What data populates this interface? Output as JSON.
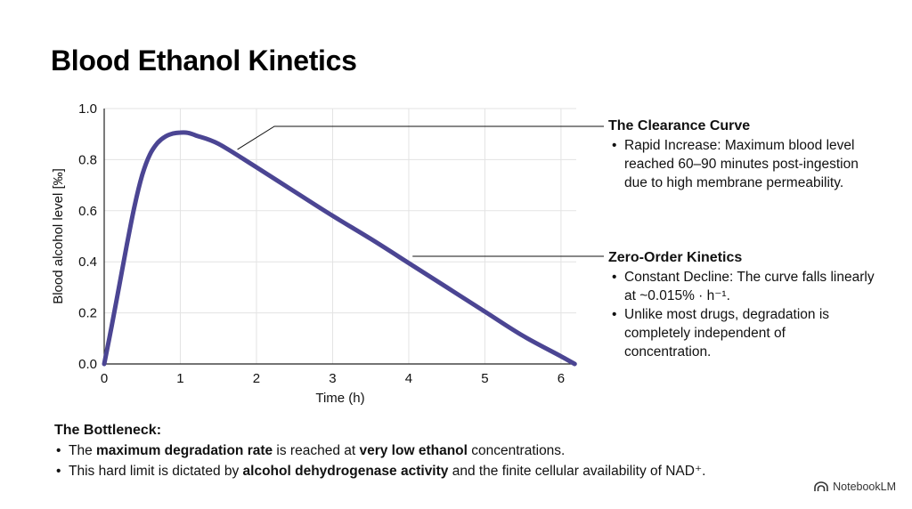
{
  "page": {
    "title": "Blood Ethanol Kinetics",
    "brand": "NotebookLM",
    "brand_icon": "notebooklm-logo-icon"
  },
  "annotations": {
    "clearance": {
      "title": "The Clearance Curve",
      "bullets": [
        "Rapid Increase: Maximum blood level reached 60–90 minutes post-ingestion due to high membrane permeability."
      ]
    },
    "zero_order": {
      "title": "Zero-Order Kinetics",
      "bullets": [
        "Constant Decline: The curve falls linearly at ~0.015% · h⁻¹.",
        "Unlike most drugs, degradation is completely independent of concentration."
      ]
    }
  },
  "bottleneck": {
    "title": "The Bottleneck:",
    "bullets": [
      [
        {
          "text": "The ",
          "bold": false
        },
        {
          "text": "maximum degradation rate",
          "bold": true
        },
        {
          "text": " is reached at ",
          "bold": false
        },
        {
          "text": "very low ethanol",
          "bold": true
        },
        {
          "text": " concentrations.",
          "bold": false
        }
      ],
      [
        {
          "text": "This hard limit is dictated by ",
          "bold": false
        },
        {
          "text": "alcohol dehydrogenase activity",
          "bold": true
        },
        {
          "text": " and the finite cellular availability of NAD⁺.",
          "bold": false
        }
      ]
    ]
  },
  "chart_data": {
    "type": "line",
    "title": "",
    "xlabel": "Time (h)",
    "ylabel": "Blood alcohol level [‰]",
    "xlim": [
      0,
      6.2
    ],
    "ylim": [
      0,
      1.0
    ],
    "xticks": [
      0,
      1,
      2,
      3,
      4,
      5,
      6
    ],
    "xtick_labels": [
      "0",
      "1",
      "2",
      "3",
      "4",
      "5",
      "6"
    ],
    "yticks": [
      0,
      0.2,
      0.4,
      0.6,
      0.8,
      1.0
    ],
    "ytick_labels": [
      "0.0",
      "0.2",
      "0.4",
      "0.6",
      "0.8",
      "1.0"
    ],
    "grid": true,
    "series": [
      {
        "color": "#4b4593",
        "x": [
          0,
          0.1,
          0.2,
          0.3,
          0.4,
          0.5,
          0.6,
          0.7,
          0.8,
          0.9,
          1.0,
          1.1,
          1.2,
          1.5,
          2.0,
          2.5,
          3.0,
          3.5,
          4.0,
          4.5,
          5.0,
          5.5,
          6.0,
          6.18
        ],
        "y": [
          0.0,
          0.15,
          0.31,
          0.47,
          0.62,
          0.74,
          0.82,
          0.865,
          0.89,
          0.902,
          0.906,
          0.905,
          0.895,
          0.862,
          0.77,
          0.675,
          0.58,
          0.49,
          0.395,
          0.3,
          0.205,
          0.11,
          0.03,
          0.0
        ]
      }
    ],
    "callouts": [
      {
        "target_x": 1.75,
        "target_y": 0.84,
        "label_ref": "clearance"
      },
      {
        "target_x": 4.05,
        "target_y": 0.42,
        "label_ref": "zero_order"
      }
    ]
  }
}
